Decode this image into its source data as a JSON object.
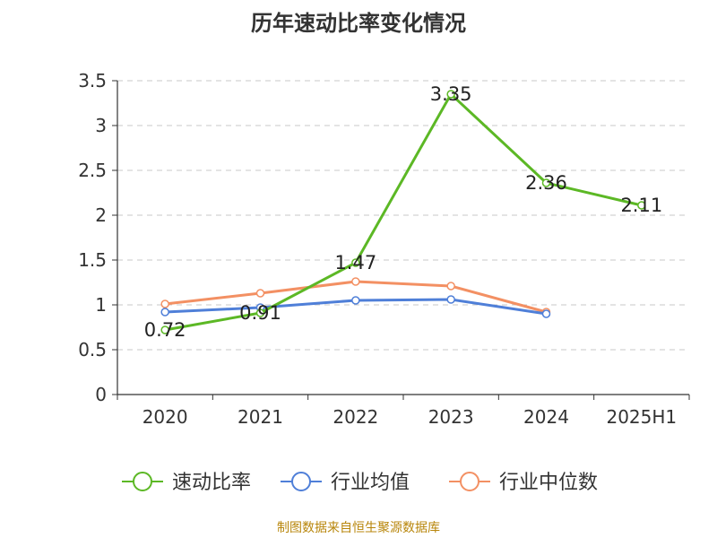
{
  "chart_data": {
    "type": "line",
    "title": "历年速动比率变化情况",
    "categories": [
      "2020",
      "2021",
      "2022",
      "2023",
      "2024",
      "2025H1"
    ],
    "ylim": [
      0,
      3.5
    ],
    "yticks": [
      "0",
      "0.5",
      "1",
      "1.5",
      "2",
      "2.5",
      "3",
      "3.5"
    ],
    "grid": true,
    "legend_position": "bottom",
    "series": [
      {
        "name": "速动比率",
        "color": "#5cb825",
        "values": [
          0.72,
          0.91,
          1.47,
          3.35,
          2.36,
          2.11
        ],
        "labels": [
          "0.72",
          "0.91",
          "1.47",
          "3.35",
          "2.36",
          "2.11"
        ]
      },
      {
        "name": "行业均值",
        "color": "#4f7fd8",
        "values": [
          0.92,
          0.97,
          1.05,
          1.06,
          0.9,
          null
        ]
      },
      {
        "name": "行业中位数",
        "color": "#f39063",
        "values": [
          1.01,
          1.13,
          1.26,
          1.21,
          0.92,
          null
        ]
      }
    ]
  },
  "source": "制图数据来自恒生聚源数据库"
}
